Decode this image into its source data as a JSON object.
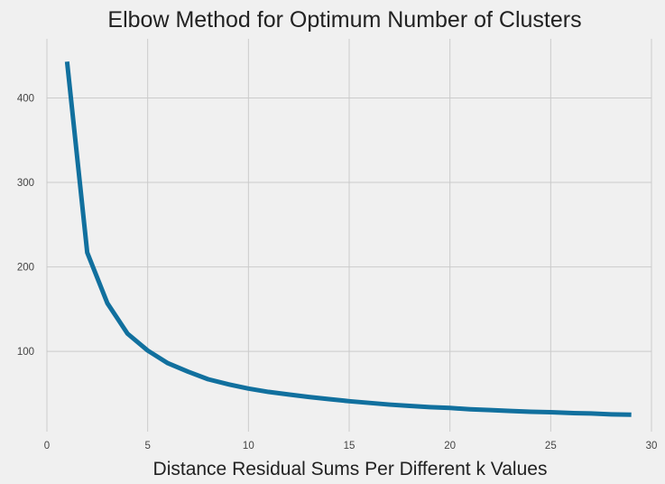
{
  "chart_data": {
    "type": "line",
    "title": "Elbow Method for Optimum Number of Clusters",
    "xlabel": "Distance Residual Sums Per Different k Values",
    "ylabel": "",
    "xlim": [
      0,
      30
    ],
    "ylim": [
      5,
      470
    ],
    "xticks": [
      0,
      5,
      10,
      15,
      20,
      25,
      30
    ],
    "yticks": [
      100,
      200,
      300,
      400
    ],
    "grid": true,
    "series": [
      {
        "color": "#11709e",
        "x": [
          1,
          2,
          3,
          4,
          5,
          6,
          7,
          8,
          9,
          10,
          11,
          12,
          13,
          14,
          15,
          16,
          17,
          18,
          19,
          20,
          21,
          22,
          23,
          24,
          25,
          26,
          27,
          28,
          29
        ],
        "y": [
          443,
          217,
          157,
          121,
          101,
          86,
          76,
          67,
          61,
          56,
          52,
          49,
          46,
          43.5,
          41,
          39,
          37,
          35.5,
          34,
          33,
          31.5,
          30.5,
          29.5,
          28.5,
          28,
          27,
          26.5,
          25.5,
          25
        ]
      }
    ]
  },
  "colors": {
    "background": "#f0f0f0",
    "grid": "#cbcbcb",
    "line": "#11709e"
  }
}
